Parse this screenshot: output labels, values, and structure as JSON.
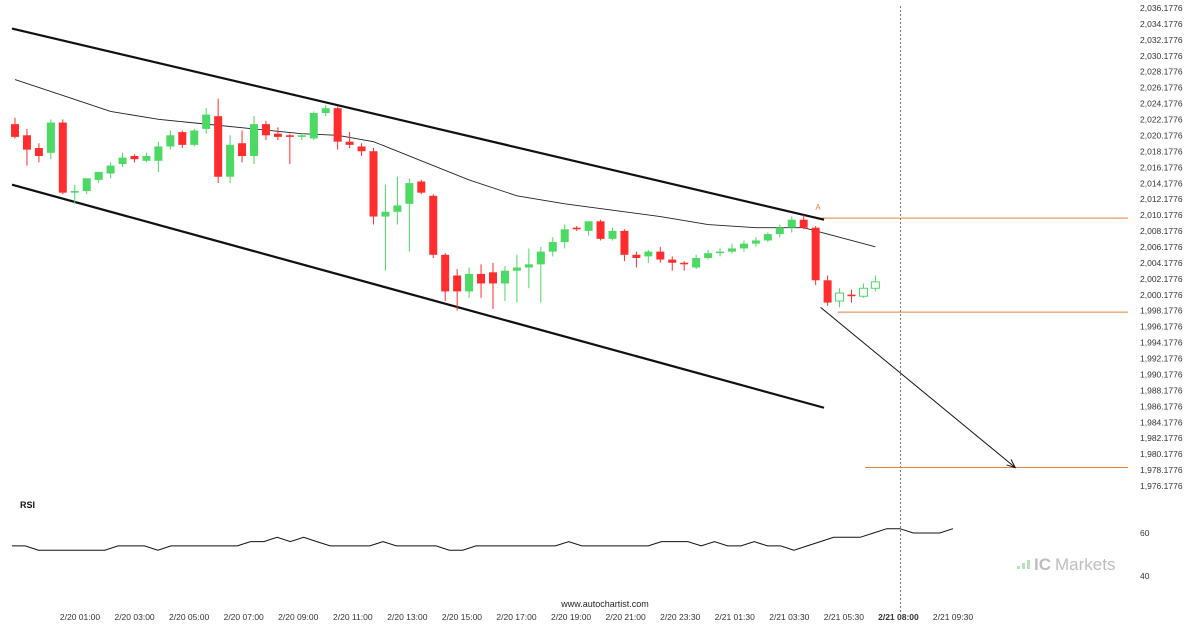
{
  "chart_data": {
    "type": "candlestick",
    "price_axis": {
      "min": 1976.1776,
      "max": 2036.1776,
      "tick_labels": [
        "2,036.1776",
        "2,034.1776",
        "2,032.1776",
        "2,030.1776",
        "2,028.1776",
        "2,026.1776",
        "2,024.1776",
        "2,022.1776",
        "2,020.1776",
        "2,018.1776",
        "2,016.1776",
        "2,014.1776",
        "2,012.1776",
        "2,010.1776",
        "2,008.1776",
        "2,006.1776",
        "2,004.1776",
        "2,002.1776",
        "2,000.1776",
        "1,998.1776",
        "1,996.1776",
        "1,994.1776",
        "1,992.1776",
        "1,990.1776",
        "1,988.1776",
        "1,986.1776",
        "1,984.1776",
        "1,982.1776",
        "1,980.1776",
        "1,978.1776",
        "1,976.1776"
      ]
    },
    "time_axis": {
      "labels": [
        "2/20 01:00",
        "2/20 03:00",
        "2/20 05:00",
        "2/20 07:00",
        "2/20 09:00",
        "2/20 11:00",
        "2/20 13:00",
        "2/20 15:00",
        "2/20 17:00",
        "2/20 19:00",
        "2/20 21:00",
        "2/20 23:30",
        "2/21 01:30",
        "2/21 03:30",
        "2/21 05:30",
        "2/21 08:00",
        "2/21 09:30"
      ],
      "highlighted": "2/21 08:00"
    },
    "candles": [
      {
        "o": 2021.6,
        "h": 2022.4,
        "l": 2019.8,
        "c": 2020.0
      },
      {
        "o": 2020.2,
        "h": 2021.0,
        "l": 2016.4,
        "c": 2018.4
      },
      {
        "o": 2018.6,
        "h": 2019.2,
        "l": 2016.8,
        "c": 2017.6
      },
      {
        "o": 2018.0,
        "h": 2022.2,
        "l": 2017.2,
        "c": 2021.8
      },
      {
        "o": 2021.8,
        "h": 2022.2,
        "l": 2012.8,
        "c": 2013.0
      },
      {
        "o": 2013.0,
        "h": 2014.0,
        "l": 2011.6,
        "c": 2013.2
      },
      {
        "o": 2013.2,
        "h": 2014.8,
        "l": 2012.8,
        "c": 2014.8
      },
      {
        "o": 2014.6,
        "h": 2015.6,
        "l": 2014.2,
        "c": 2015.6
      },
      {
        "o": 2015.4,
        "h": 2016.8,
        "l": 2014.8,
        "c": 2016.4
      },
      {
        "o": 2016.6,
        "h": 2018.0,
        "l": 2016.2,
        "c": 2017.4
      },
      {
        "o": 2017.6,
        "h": 2017.8,
        "l": 2016.8,
        "c": 2017.2
      },
      {
        "o": 2017.0,
        "h": 2018.0,
        "l": 2016.8,
        "c": 2017.6
      },
      {
        "o": 2017.0,
        "h": 2019.4,
        "l": 2015.6,
        "c": 2018.8
      },
      {
        "o": 2018.8,
        "h": 2020.8,
        "l": 2018.4,
        "c": 2020.2
      },
      {
        "o": 2020.6,
        "h": 2020.8,
        "l": 2018.6,
        "c": 2019.0
      },
      {
        "o": 2019.0,
        "h": 2021.0,
        "l": 2018.8,
        "c": 2020.8
      },
      {
        "o": 2021.0,
        "h": 2023.6,
        "l": 2020.4,
        "c": 2022.8
      },
      {
        "o": 2022.6,
        "h": 2024.8,
        "l": 2014.2,
        "c": 2015.0
      },
      {
        "o": 2015.0,
        "h": 2020.2,
        "l": 2014.2,
        "c": 2019.0
      },
      {
        "o": 2019.2,
        "h": 2020.8,
        "l": 2016.8,
        "c": 2017.6
      },
      {
        "o": 2017.6,
        "h": 2022.6,
        "l": 2016.6,
        "c": 2021.6
      },
      {
        "o": 2021.6,
        "h": 2022.0,
        "l": 2019.6,
        "c": 2020.2
      },
      {
        "o": 2020.4,
        "h": 2021.2,
        "l": 2019.6,
        "c": 2020.0
      },
      {
        "o": 2020.2,
        "h": 2020.4,
        "l": 2016.6,
        "c": 2020.0
      },
      {
        "o": 2020.0,
        "h": 2020.4,
        "l": 2019.6,
        "c": 2020.2
      },
      {
        "o": 2019.8,
        "h": 2023.2,
        "l": 2019.6,
        "c": 2023.0
      },
      {
        "o": 2023.0,
        "h": 2024.0,
        "l": 2022.6,
        "c": 2023.6
      },
      {
        "o": 2023.6,
        "h": 2023.8,
        "l": 2018.4,
        "c": 2019.4
      },
      {
        "o": 2019.4,
        "h": 2020.6,
        "l": 2018.6,
        "c": 2019.0
      },
      {
        "o": 2018.8,
        "h": 2019.2,
        "l": 2017.6,
        "c": 2018.2
      },
      {
        "o": 2018.2,
        "h": 2018.6,
        "l": 2009.0,
        "c": 2010.0
      },
      {
        "o": 2010.0,
        "h": 2014.0,
        "l": 2003.2,
        "c": 2010.6
      },
      {
        "o": 2010.6,
        "h": 2015.0,
        "l": 2009.0,
        "c": 2011.4
      },
      {
        "o": 2011.6,
        "h": 2014.8,
        "l": 2005.6,
        "c": 2014.2
      },
      {
        "o": 2014.4,
        "h": 2014.6,
        "l": 2012.8,
        "c": 2013.0
      },
      {
        "o": 2012.6,
        "h": 2012.8,
        "l": 2004.8,
        "c": 2005.2
      },
      {
        "o": 2005.2,
        "h": 2005.4,
        "l": 1999.4,
        "c": 2000.6
      },
      {
        "o": 2002.6,
        "h": 2003.4,
        "l": 1998.2,
        "c": 2000.6
      },
      {
        "o": 2000.6,
        "h": 2003.6,
        "l": 1999.8,
        "c": 2002.8
      },
      {
        "o": 2002.8,
        "h": 2004.0,
        "l": 1999.8,
        "c": 2001.6
      },
      {
        "o": 2003.0,
        "h": 2004.2,
        "l": 1998.4,
        "c": 2001.6
      },
      {
        "o": 2001.6,
        "h": 2003.8,
        "l": 1999.4,
        "c": 2003.2
      },
      {
        "o": 2003.2,
        "h": 2005.2,
        "l": 1999.2,
        "c": 2003.6
      },
      {
        "o": 2003.6,
        "h": 2006.0,
        "l": 2001.0,
        "c": 2004.0
      },
      {
        "o": 2004.0,
        "h": 2006.2,
        "l": 1999.2,
        "c": 2005.6
      },
      {
        "o": 2005.6,
        "h": 2007.4,
        "l": 2005.0,
        "c": 2006.8
      },
      {
        "o": 2006.8,
        "h": 2009.0,
        "l": 2006.0,
        "c": 2008.4
      },
      {
        "o": 2008.6,
        "h": 2008.8,
        "l": 2008.2,
        "c": 2008.4
      },
      {
        "o": 2008.2,
        "h": 2009.4,
        "l": 2007.6,
        "c": 2009.4
      },
      {
        "o": 2009.4,
        "h": 2009.6,
        "l": 2007.0,
        "c": 2007.2
      },
      {
        "o": 2007.2,
        "h": 2008.6,
        "l": 2007.0,
        "c": 2008.2
      },
      {
        "o": 2008.2,
        "h": 2008.4,
        "l": 2004.4,
        "c": 2005.2
      },
      {
        "o": 2005.2,
        "h": 2005.6,
        "l": 2003.6,
        "c": 2004.8
      },
      {
        "o": 2005.0,
        "h": 2005.8,
        "l": 2004.2,
        "c": 2005.6
      },
      {
        "o": 2005.6,
        "h": 2006.2,
        "l": 2004.2,
        "c": 2004.6
      },
      {
        "o": 2004.6,
        "h": 2005.0,
        "l": 2003.2,
        "c": 2004.2
      },
      {
        "o": 2004.2,
        "h": 2004.4,
        "l": 2003.2,
        "c": 2004.0
      },
      {
        "o": 2003.6,
        "h": 2005.2,
        "l": 2003.4,
        "c": 2004.8
      },
      {
        "o": 2004.8,
        "h": 2005.8,
        "l": 2004.6,
        "c": 2005.4
      },
      {
        "o": 2005.4,
        "h": 2006.0,
        "l": 2005.0,
        "c": 2005.6
      },
      {
        "o": 2005.6,
        "h": 2006.6,
        "l": 2005.4,
        "c": 2006.0
      },
      {
        "o": 2006.0,
        "h": 2007.0,
        "l": 2005.6,
        "c": 2006.6
      },
      {
        "o": 2006.6,
        "h": 2007.4,
        "l": 2006.2,
        "c": 2007.0
      },
      {
        "o": 2007.0,
        "h": 2008.0,
        "l": 2006.8,
        "c": 2007.8
      },
      {
        "o": 2007.8,
        "h": 2009.0,
        "l": 2007.4,
        "c": 2008.6
      },
      {
        "o": 2008.6,
        "h": 2010.0,
        "l": 2008.0,
        "c": 2009.6
      },
      {
        "o": 2009.6,
        "h": 2010.2,
        "l": 2008.4,
        "c": 2008.6
      },
      {
        "o": 2008.6,
        "h": 2008.8,
        "l": 2001.4,
        "c": 2002.0
      },
      {
        "o": 2002.0,
        "h": 2002.6,
        "l": 1998.8,
        "c": 1999.2
      },
      {
        "o": 1999.4,
        "h": 2001.0,
        "l": 1998.6,
        "c": 2000.4,
        "hollow": true
      },
      {
        "o": 2000.2,
        "h": 2000.8,
        "l": 1999.2,
        "c": 2000.0
      },
      {
        "o": 2000.0,
        "h": 2001.6,
        "l": 1999.8,
        "c": 2001.0,
        "hollow": true
      },
      {
        "o": 2001.0,
        "h": 2002.6,
        "l": 2000.6,
        "c": 2001.8,
        "hollow": true
      }
    ],
    "moving_average": [
      {
        "i": 0,
        "v": 2027.2
      },
      {
        "i": 4,
        "v": 2025.2
      },
      {
        "i": 8,
        "v": 2023.2
      },
      {
        "i": 12,
        "v": 2022.2
      },
      {
        "i": 16,
        "v": 2021.6
      },
      {
        "i": 20,
        "v": 2021.0
      },
      {
        "i": 24,
        "v": 2020.4
      },
      {
        "i": 27,
        "v": 2020.2
      },
      {
        "i": 30,
        "v": 2019.4
      },
      {
        "i": 34,
        "v": 2017.0
      },
      {
        "i": 38,
        "v": 2014.6
      },
      {
        "i": 42,
        "v": 2012.6
      },
      {
        "i": 46,
        "v": 2011.6
      },
      {
        "i": 50,
        "v": 2010.8
      },
      {
        "i": 54,
        "v": 2010.0
      },
      {
        "i": 58,
        "v": 2009.0
      },
      {
        "i": 62,
        "v": 2008.6
      },
      {
        "i": 66,
        "v": 2008.6
      },
      {
        "i": 68,
        "v": 2007.8
      },
      {
        "i": 70,
        "v": 2007.0
      },
      {
        "i": 72,
        "v": 2006.2
      }
    ],
    "channel": {
      "upper": [
        {
          "i": 0,
          "v": 2033.6
        },
        {
          "i": 67.7,
          "v": 2009.6
        }
      ],
      "lower": [
        {
          "i": 0,
          "v": 2014.0
        },
        {
          "i": 67.7,
          "v": 1986.0
        }
      ]
    },
    "pattern": {
      "marker_label": "A",
      "marker_value": 2010.6,
      "resistance_level": 2009.8,
      "support_level": 1998.0,
      "breakout_index": 68,
      "projection_start": {
        "i": 68,
        "v": 1998.6
      },
      "projection_end": {
        "i": 83.7,
        "v": 1978.5
      },
      "target_level": 1978.5
    },
    "rsi": {
      "label": "RSI",
      "axis_labels": [
        "60",
        "40"
      ],
      "axis_values": [
        60,
        40
      ],
      "values": [
        54,
        54,
        52,
        52,
        52,
        52,
        52,
        52,
        54,
        54,
        54,
        52,
        54,
        54,
        54,
        54,
        54,
        54,
        56,
        56,
        58,
        56,
        58,
        56,
        54,
        54,
        54,
        54,
        56,
        54,
        54,
        54,
        54,
        52,
        52,
        54,
        54,
        54,
        54,
        54,
        54,
        54,
        56,
        54,
        54,
        54,
        54,
        54,
        54,
        56,
        56,
        56,
        54,
        56,
        54,
        54,
        56,
        54,
        54,
        52,
        54,
        56,
        58,
        58,
        58,
        60,
        62,
        62,
        60,
        60,
        60,
        62
      ]
    },
    "watermark": {
      "brand_prefix": "IC",
      "brand_suffix": "Markets",
      "source": "www.autochartist.com"
    },
    "colors": {
      "bull": "#4cd964",
      "bear": "#ff2d2d",
      "line": "#111111",
      "level": "#e8803a",
      "grid_text": "#333333"
    }
  }
}
